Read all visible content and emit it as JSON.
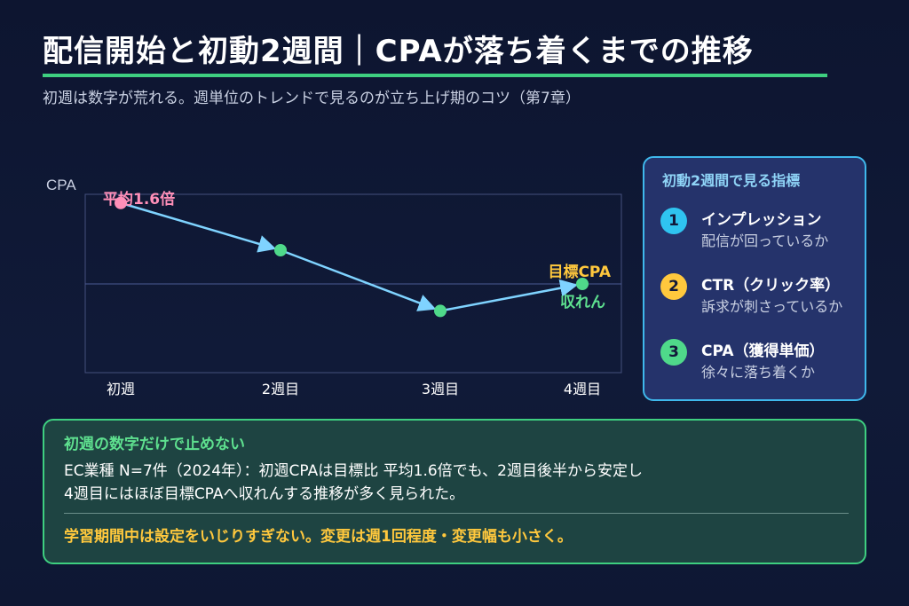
{
  "header": {
    "title": "配信開始と初動2週間｜CPAが落ち着くまでの推移",
    "subtitle": "初週は数字が荒れる。週単位のトレンドで見るのが立ち上げ期のコツ（第7章）"
  },
  "chart_data": {
    "type": "line",
    "ylabel": "CPA",
    "categories": [
      "初週",
      "2週目",
      "3週目",
      "4週目"
    ],
    "values": [
      1.6,
      1.25,
      0.8,
      1.0
    ],
    "target_value": 1.0,
    "ylim": [
      0.0,
      2.0
    ],
    "annotations": {
      "start_label": "平均1.6倍",
      "target_label": "目標CPA",
      "converge_label": "収れん"
    },
    "colors": {
      "start_point": "#ff8fb8",
      "points": "#4fd98a",
      "line": "#7fd3ff",
      "target_line": "#4a5a94",
      "target_label": "#ffc83d",
      "converge_label": "#5ee08f"
    }
  },
  "side_panel": {
    "title": "初動2週間で見る指標",
    "items": [
      {
        "num": "1",
        "name": "インプレッション",
        "desc": "配信が回っているか",
        "color": "#2fc4f0"
      },
      {
        "num": "2",
        "name": "CTR（クリック率）",
        "desc": "訴求が刺さっているか",
        "color": "#ffc83d"
      },
      {
        "num": "3",
        "name": "CPA（獲得単価）",
        "desc": "徐々に落ち着くか",
        "color": "#4fd98a"
      }
    ]
  },
  "bottom_box": {
    "heading": "初週の数字だけで止めない",
    "body_line1": "EC業種 N=7件（2024年）：初週CPAは目標比 平均1.6倍でも、2週目後半から安定し",
    "body_line2": "4週目にはほぼ目標CPAへ収れんする推移が多く見られた。",
    "note": "学習期間中は設定をいじりすぎない。変更は週1回程度・変更幅も小さく。"
  }
}
